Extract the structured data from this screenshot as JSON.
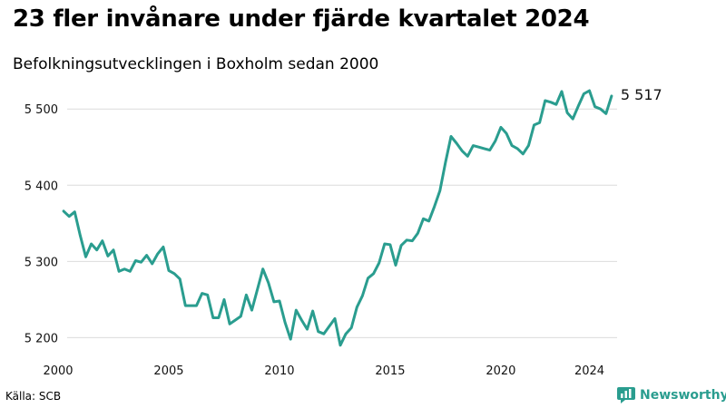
{
  "title": "23 fler invånare under fjärde kvartalet 2024",
  "subtitle": "Befolkningsutvecklingen i Boxholm sedan 2000",
  "source": "Källa: SCB",
  "brand": {
    "name": "Newsworthy",
    "icon": "newsworthy-logo-icon",
    "color": "#2a9d8f"
  },
  "chart_data": {
    "type": "line",
    "title": "23 fler invånare under fjärde kvartalet 2024",
    "subtitle": "Befolkningsutvecklingen i Boxholm sedan 2000",
    "xlabel": "",
    "ylabel": "",
    "ylim": [
      5185,
      5530
    ],
    "xlim": [
      2000,
      2025.25
    ],
    "yticks": [
      5200,
      5300,
      5400,
      5500
    ],
    "ytick_labels": [
      "5 200",
      "5 300",
      "5 400",
      "5 500"
    ],
    "xticks": [
      2000,
      2005,
      2010,
      2015,
      2020,
      2024
    ],
    "xtick_labels": [
      "2000",
      "2005",
      "2010",
      "2015",
      "2020",
      "2024"
    ],
    "grid": "horizontal",
    "line_color": "#2a9d8f",
    "end_label": "5 517",
    "series": [
      {
        "x": [
          2000.25,
          2000.5,
          2000.75,
          2001,
          2001.25,
          2001.5,
          2001.75,
          2002,
          2002.25,
          2002.5,
          2002.75,
          2003,
          2003.25,
          2003.5,
          2003.75,
          2004,
          2004.25,
          2004.5,
          2004.75,
          2005,
          2005.25,
          2005.5,
          2005.75,
          2006,
          2006.25,
          2006.5,
          2006.75,
          2007,
          2007.25,
          2007.5,
          2007.75,
          2008,
          2008.25,
          2008.5,
          2008.75,
          2009,
          2009.25,
          2009.5,
          2009.75,
          2010,
          2010.25,
          2010.5,
          2010.75,
          2011,
          2011.25,
          2011.5,
          2011.75,
          2012,
          2012.25,
          2012.5,
          2012.75,
          2013,
          2013.25,
          2013.5,
          2013.75,
          2014,
          2014.25,
          2014.5,
          2014.75,
          2015,
          2015.25,
          2015.5,
          2015.75,
          2016,
          2016.25,
          2016.5,
          2016.75,
          2017,
          2017.25,
          2017.5,
          2017.75,
          2018,
          2018.25,
          2018.5,
          2018.75,
          2019,
          2019.25,
          2019.5,
          2019.75,
          2020,
          2020.25,
          2020.5,
          2020.75,
          2021,
          2021.25,
          2021.5,
          2021.75,
          2022,
          2022.25,
          2022.5,
          2022.75,
          2023,
          2023.25,
          2023.5,
          2023.75,
          2024,
          2024.25,
          2024.5,
          2024.75,
          2025
        ],
        "values": [
          5366,
          5359,
          5365,
          5334,
          5306,
          5323,
          5315,
          5327,
          5307,
          5315,
          5287,
          5290,
          5287,
          5301,
          5299,
          5308,
          5297,
          5310,
          5319,
          5288,
          5284,
          5277,
          5242,
          5242,
          5242,
          5258,
          5256,
          5226,
          5226,
          5250,
          5218,
          5223,
          5228,
          5256,
          5236,
          5263,
          5290,
          5272,
          5247,
          5248,
          5220,
          5198,
          5236,
          5223,
          5211,
          5235,
          5208,
          5205,
          5215,
          5225,
          5190,
          5205,
          5213,
          5240,
          5255,
          5278,
          5284,
          5298,
          5323,
          5322,
          5295,
          5321,
          5328,
          5327,
          5337,
          5356,
          5353,
          5372,
          5393,
          5430,
          5464,
          5455,
          5445,
          5438,
          5452,
          5450,
          5448,
          5446,
          5458,
          5476,
          5468,
          5452,
          5448,
          5441,
          5452,
          5479,
          5482,
          5511,
          5509,
          5506,
          5523,
          5495,
          5487,
          5504,
          5520,
          5524,
          5503,
          5500,
          5494,
          5517
        ]
      }
    ]
  }
}
